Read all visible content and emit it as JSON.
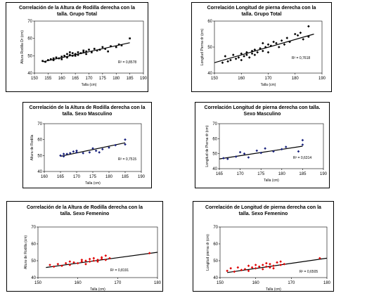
{
  "chart_data": [
    {
      "type": "scatter",
      "title": [
        "Correlación de la Altura de Rodilla derecha con la",
        "talla. Grupo Total"
      ],
      "xlabel": "Talla (cm)",
      "ylabel": "Altura Rodilla Dr (cm)",
      "xlim": [
        150,
        190
      ],
      "ylim": [
        40,
        70
      ],
      "xticks": [
        150,
        155,
        160,
        165,
        170,
        175,
        180,
        185,
        190
      ],
      "yticks": [
        40,
        50,
        60,
        70
      ],
      "marker": "square",
      "color": "#000000",
      "points": [
        [
          153,
          47.0
        ],
        [
          154,
          46.5
        ],
        [
          155,
          47.5
        ],
        [
          156,
          48.0
        ],
        [
          157,
          47.5
        ],
        [
          157,
          48.5
        ],
        [
          158,
          49.0
        ],
        [
          159,
          48.5
        ],
        [
          160,
          49.5
        ],
        [
          160,
          48.0
        ],
        [
          161,
          50.0
        ],
        [
          162,
          49.0
        ],
        [
          162,
          51.0
        ],
        [
          163,
          50.5
        ],
        [
          163,
          52.0
        ],
        [
          164,
          50.0
        ],
        [
          164,
          51.5
        ],
        [
          165,
          51.0
        ],
        [
          165,
          50.0
        ],
        [
          166,
          52.0
        ],
        [
          166,
          50.5
        ],
        [
          167,
          51.5
        ],
        [
          168,
          53.0
        ],
        [
          168,
          52.0
        ],
        [
          169,
          51.0
        ],
        [
          169,
          52.5
        ],
        [
          170,
          53.5
        ],
        [
          171,
          52.0
        ],
        [
          172,
          54.0
        ],
        [
          173,
          53.0
        ],
        [
          174,
          53.5
        ],
        [
          175,
          55.0
        ],
        [
          176,
          54.0
        ],
        [
          177,
          52.5
        ],
        [
          178,
          55.5
        ],
        [
          180,
          55.0
        ],
        [
          181,
          56.5
        ],
        [
          182,
          56.0
        ],
        [
          185,
          60.0
        ]
      ],
      "trend": {
        "x": [
          153,
          185
        ],
        "y": [
          46.5,
          57.5
        ]
      },
      "r2_label": "R² = 0,8578"
    },
    {
      "type": "scatter",
      "title": [
        "Correlación Longitud  de pierna derecha con la",
        "talla. Grupo Total"
      ],
      "xlabel": "Talla (cm)",
      "ylabel": "Longitud Pierna dr (cm)",
      "xlim": [
        150,
        190
      ],
      "ylim": [
        40,
        60
      ],
      "xticks": [
        150,
        160,
        170,
        180,
        190
      ],
      "yticks": [
        40,
        50,
        60
      ],
      "marker": "diamond",
      "color": "#000000",
      "points": [
        [
          153,
          44.0
        ],
        [
          154,
          46.5
        ],
        [
          155,
          44.5
        ],
        [
          156,
          45.0
        ],
        [
          157,
          47.0
        ],
        [
          158,
          45.5
        ],
        [
          159,
          46.0
        ],
        [
          160,
          47.5
        ],
        [
          160,
          45.0
        ],
        [
          161,
          46.5
        ],
        [
          162,
          48.0
        ],
        [
          162,
          47.0
        ],
        [
          163,
          46.0
        ],
        [
          164,
          48.5
        ],
        [
          164,
          47.5
        ],
        [
          165,
          49.0
        ],
        [
          165,
          47.0
        ],
        [
          166,
          48.0
        ],
        [
          167,
          49.5
        ],
        [
          168,
          48.5
        ],
        [
          168,
          51.5
        ],
        [
          169,
          50.0
        ],
        [
          170,
          48.0
        ],
        [
          170,
          51.0
        ],
        [
          171,
          50.5
        ],
        [
          172,
          52.0
        ],
        [
          173,
          51.5
        ],
        [
          174,
          50.0
        ],
        [
          175,
          52.5
        ],
        [
          176,
          51.0
        ],
        [
          177,
          53.5
        ],
        [
          178,
          52.0
        ],
        [
          180,
          55.0
        ],
        [
          181,
          54.5
        ],
        [
          182,
          55.5
        ],
        [
          183,
          53.0
        ],
        [
          185,
          58.0
        ],
        [
          185,
          54.0
        ]
      ],
      "trend": {
        "x": [
          150,
          187
        ],
        "y": [
          44.0,
          55.0
        ]
      },
      "r2_label": "R² = 0,7618"
    },
    {
      "type": "scatter",
      "title": [
        "Correlación de la Altura de Rodilla derecha con  la",
        "talla. Sexo Masculino"
      ],
      "xlabel": "Talla (cm)",
      "ylabel": "Altura de Rodilla",
      "xlim": [
        160,
        190
      ],
      "ylim": [
        40,
        70
      ],
      "xticks": [
        160,
        165,
        170,
        175,
        180,
        185,
        190
      ],
      "yticks": [
        40,
        50,
        60,
        70
      ],
      "marker": "diamond",
      "color": "#1a237e",
      "points": [
        [
          165,
          50.0
        ],
        [
          166,
          51.0
        ],
        [
          166,
          49.5
        ],
        [
          167,
          51.0
        ],
        [
          168,
          51.5
        ],
        [
          169,
          52.5
        ],
        [
          170,
          53.0
        ],
        [
          170,
          52.0
        ],
        [
          172,
          51.5
        ],
        [
          174,
          52.0
        ],
        [
          175,
          54.5
        ],
        [
          176,
          53.0
        ],
        [
          177,
          52.0
        ],
        [
          178,
          54.0
        ],
        [
          180,
          55.0
        ],
        [
          182,
          56.5
        ],
        [
          185,
          57.0
        ],
        [
          185,
          60.0
        ]
      ],
      "trend": {
        "x": [
          165,
          185
        ],
        "y": [
          49.5,
          58.0
        ]
      },
      "r2_label": "R² = 0,7515"
    },
    {
      "type": "scatter",
      "title": [
        "Correlación Longitud de pierna derecha con talla.",
        "Sexo Masculino"
      ],
      "xlabel": "Talla (cm)",
      "ylabel": "Longitud de Pierna dr (cm)",
      "xlim": [
        165,
        190
      ],
      "ylim": [
        40,
        70
      ],
      "xticks": [
        165,
        170,
        175,
        180,
        185,
        190
      ],
      "yticks": [
        40,
        50,
        60,
        70
      ],
      "marker": "diamond",
      "color": "#1a237e",
      "points": [
        [
          166,
          47.0
        ],
        [
          167,
          46.5
        ],
        [
          169,
          48.0
        ],
        [
          170,
          51.0
        ],
        [
          171,
          50.0
        ],
        [
          172,
          47.5
        ],
        [
          174,
          52.0
        ],
        [
          175,
          50.5
        ],
        [
          176,
          53.5
        ],
        [
          178,
          51.5
        ],
        [
          180,
          53.0
        ],
        [
          181,
          54.5
        ],
        [
          184,
          51.5
        ],
        [
          185,
          56.0
        ],
        [
          185,
          59.0
        ]
      ],
      "trend": {
        "x": [
          165,
          185
        ],
        "y": [
          46.5,
          55.0
        ]
      },
      "r2_label": "R² = 0,6314"
    },
    {
      "type": "scatter",
      "title": [
        "Correlación de la Altura de Rodilla derecha con la",
        "talla. Sexo Femenino"
      ],
      "xlabel": "Talla (cm)",
      "ylabel": "Altura de Rodilla (cm)",
      "xlim": [
        150,
        180
      ],
      "ylim": [
        40,
        70
      ],
      "xticks": [
        150,
        160,
        170,
        180
      ],
      "yticks": [
        40,
        50,
        60,
        70
      ],
      "marker": "diamond",
      "color": "#e00000",
      "points": [
        [
          153,
          47.5
        ],
        [
          154,
          46.5
        ],
        [
          155,
          48.0
        ],
        [
          156,
          47.0
        ],
        [
          157,
          48.5
        ],
        [
          158,
          49.5
        ],
        [
          158,
          47.5
        ],
        [
          159,
          49.0
        ],
        [
          160,
          48.5
        ],
        [
          161,
          50.5
        ],
        [
          161,
          49.5
        ],
        [
          162,
          48.0
        ],
        [
          162,
          50.0
        ],
        [
          163,
          49.5
        ],
        [
          163,
          51.0
        ],
        [
          164,
          50.0
        ],
        [
          164,
          51.5
        ],
        [
          165,
          50.5
        ],
        [
          165,
          49.5
        ],
        [
          166,
          51.0
        ],
        [
          166,
          52.0
        ],
        [
          167,
          50.5
        ],
        [
          167,
          53.0
        ],
        [
          168,
          51.5
        ],
        [
          178,
          54.5
        ]
      ],
      "trend": {
        "x": [
          152,
          180
        ],
        "y": [
          46.0,
          55.0
        ]
      },
      "r2_label": "R² = 0,8191"
    },
    {
      "type": "scatter",
      "title": [
        "Correlación de Longitud de pierna derecha con la",
        "talla. Sexo Femenino"
      ],
      "xlabel": "Talla (cm)",
      "ylabel": "Longitud pierna dr (cm)",
      "xlim": [
        150,
        180
      ],
      "ylim": [
        40,
        70
      ],
      "xticks": [
        150,
        160,
        170,
        180
      ],
      "yticks": [
        40,
        50,
        60,
        70
      ],
      "marker": "diamond",
      "color": "#e00000",
      "points": [
        [
          152,
          44.0
        ],
        [
          153,
          45.5
        ],
        [
          154,
          43.5
        ],
        [
          155,
          46.0
        ],
        [
          156,
          44.5
        ],
        [
          157,
          45.0
        ],
        [
          158,
          47.0
        ],
        [
          158,
          44.0
        ],
        [
          159,
          46.0
        ],
        [
          160,
          45.5
        ],
        [
          160,
          47.5
        ],
        [
          161,
          46.5
        ],
        [
          162,
          45.0
        ],
        [
          162,
          47.5
        ],
        [
          163,
          46.5
        ],
        [
          163,
          48.5
        ],
        [
          164,
          46.0
        ],
        [
          164,
          48.0
        ],
        [
          165,
          47.0
        ],
        [
          165,
          45.5
        ],
        [
          166,
          49.0
        ],
        [
          167,
          47.5
        ],
        [
          167,
          49.5
        ],
        [
          168,
          48.0
        ],
        [
          178,
          51.5
        ]
      ],
      "trend": {
        "x": [
          152,
          180
        ],
        "y": [
          43.0,
          51.5
        ]
      },
      "r2_label": "R² = 0,6505"
    }
  ]
}
